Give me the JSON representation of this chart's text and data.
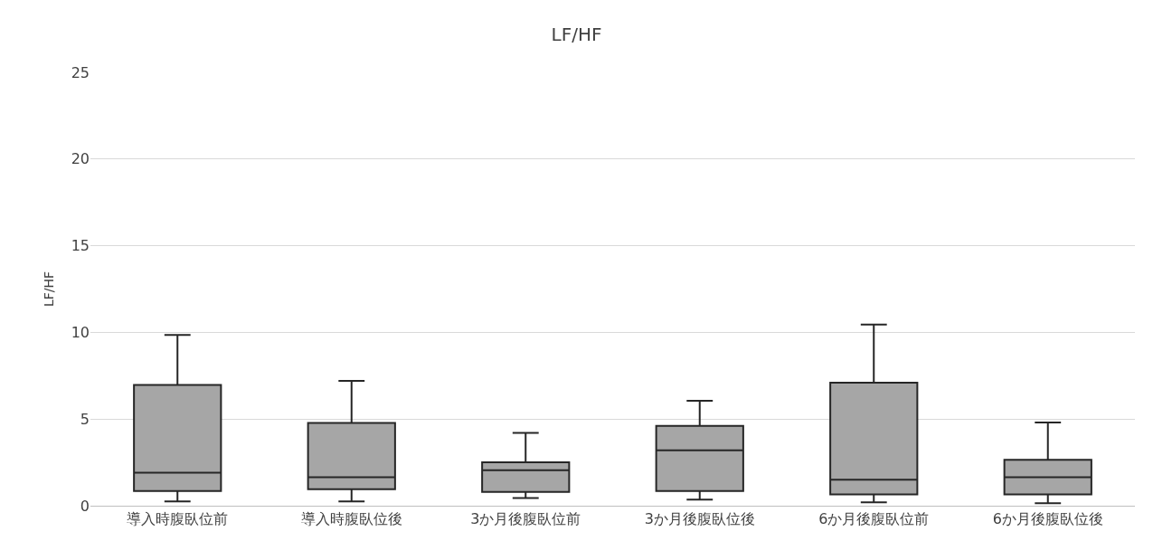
{
  "chart_data": {
    "type": "box",
    "title": "LF/HF",
    "ylabel": "LF/HF",
    "categories": [
      "導入時腹臥位前",
      "導入時腹臥位後",
      "3か月後腹臥位前",
      "3か月後腹臥位後",
      "6か月後腹臥位前",
      "6か月後腹臥位後"
    ],
    "series": [
      {
        "color": "#a6a6a6",
        "boxes": [
          {
            "low": 0.25,
            "q1": 0.85,
            "median": 1.9,
            "q3": 6.97,
            "high": 9.85
          },
          {
            "low": 0.25,
            "q1": 0.95,
            "median": 1.65,
            "q3": 4.77,
            "high": 7.2
          },
          {
            "low": 0.45,
            "q1": 0.8,
            "median": 2.05,
            "q3": 2.5,
            "high": 4.2
          },
          {
            "low": 0.35,
            "q1": 0.85,
            "median": 3.2,
            "q3": 4.6,
            "high": 6.05
          },
          {
            "low": 0.2,
            "q1": 0.65,
            "median": 1.5,
            "q3": 7.1,
            "high": 10.45
          },
          {
            "low": 0.15,
            "q1": 0.65,
            "median": 1.65,
            "q3": 2.65,
            "high": 4.8
          }
        ]
      }
    ],
    "ylim": [
      0,
      25
    ],
    "yticks": [
      0,
      5,
      10,
      15,
      20,
      25
    ],
    "grid": "y"
  }
}
